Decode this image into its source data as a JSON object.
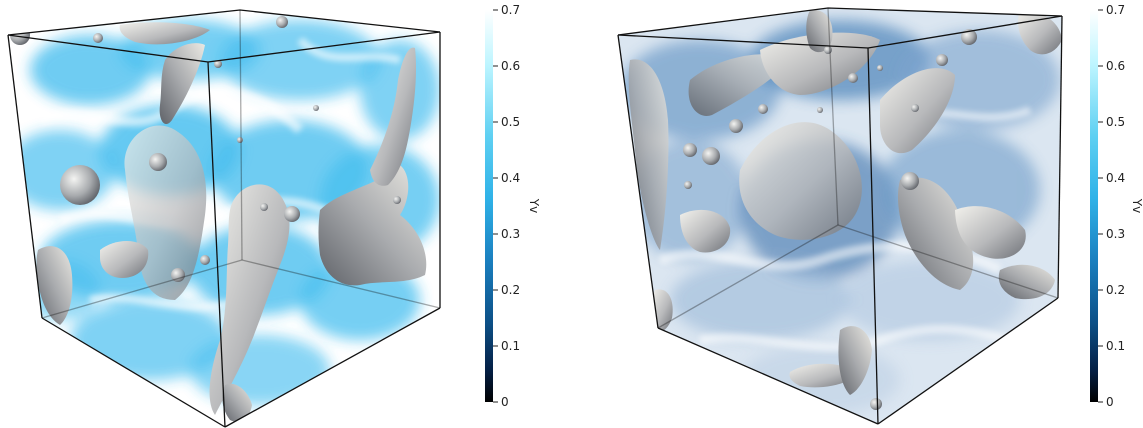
{
  "panels": [
    {
      "name": "left-volume-render",
      "colorbar": {
        "title": "Yv",
        "ticks": [
          "0.7",
          "0.6",
          "0.5",
          "0.4",
          "0.3",
          "0.2",
          "0.1",
          "0"
        ],
        "colormap": [
          "#ffffff",
          "#bdf5ff",
          "#5fd0f2",
          "#2fb2e8",
          "#1a7fbf",
          "#0c4f86",
          "#041f44",
          "#000000"
        ]
      }
    },
    {
      "name": "right-volume-render",
      "colorbar": {
        "title": "Yv",
        "ticks": [
          "0.7",
          "0.6",
          "0.5",
          "0.4",
          "0.3",
          "0.2",
          "0.1",
          "0"
        ],
        "colormap": [
          "#ffffff",
          "#bdf5ff",
          "#5fd0f2",
          "#2fb2e8",
          "#1a7fbf",
          "#0c4f86",
          "#041f44",
          "#000000"
        ]
      }
    }
  ],
  "colors": {
    "left_fluid": "#29b4ec",
    "right_fluid": "#4f86bb",
    "surface_light": "#e6e4df",
    "surface_dark": "#7d8086",
    "cube_edge": "#111111"
  }
}
